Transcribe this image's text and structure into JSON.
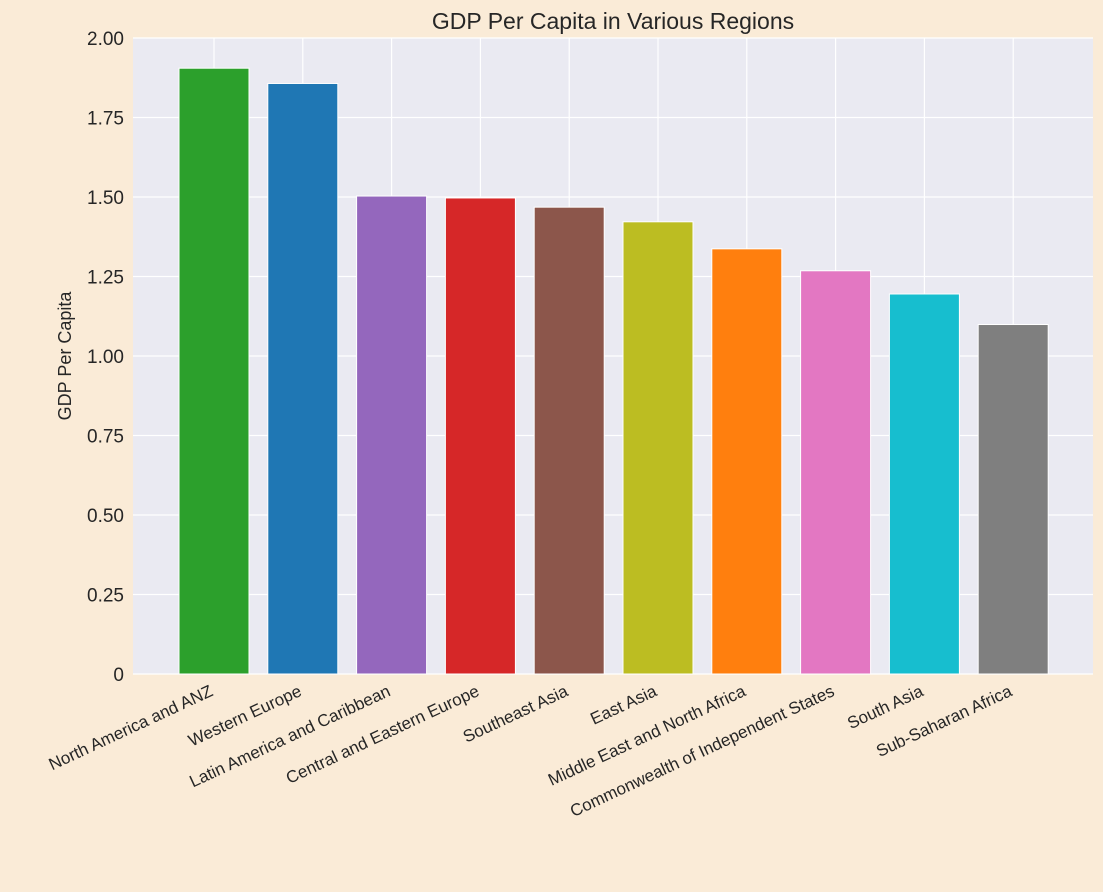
{
  "chart_data": {
    "type": "bar",
    "title": "GDP Per Capita in Various Regions",
    "xlabel": "",
    "ylabel": "GDP Per Capita",
    "categories": [
      "North America and ANZ",
      "Western Europe",
      "Latin America and Caribbean",
      "Central and Eastern Europe",
      "Southeast Asia",
      "East Asia",
      "Middle East and North Africa",
      "Commonwealth of Independent States",
      "South Asia",
      "Sub-Saharan Africa"
    ],
    "values": [
      1.905,
      1.857,
      1.503,
      1.497,
      1.468,
      1.422,
      1.337,
      1.268,
      1.195,
      1.099
    ],
    "colors": [
      "#2ca02c",
      "#1f77b4",
      "#9467bd",
      "#d62728",
      "#8c564b",
      "#bcbd22",
      "#ff7f0e",
      "#e377c2",
      "#17becf",
      "#7f7f7f"
    ],
    "ylim": [
      0,
      2.0
    ],
    "yticks": [
      0,
      0.25,
      0.5,
      0.75,
      1.0,
      1.25,
      1.5,
      1.75,
      2.0
    ],
    "ytick_labels": [
      "0",
      "0.25",
      "0.50",
      "0.75",
      "1.00",
      "1.25",
      "1.50",
      "1.75",
      "2.00"
    ],
    "grid": true,
    "plot_background": "#eaeaf2",
    "figure_background": "#faebd7"
  }
}
